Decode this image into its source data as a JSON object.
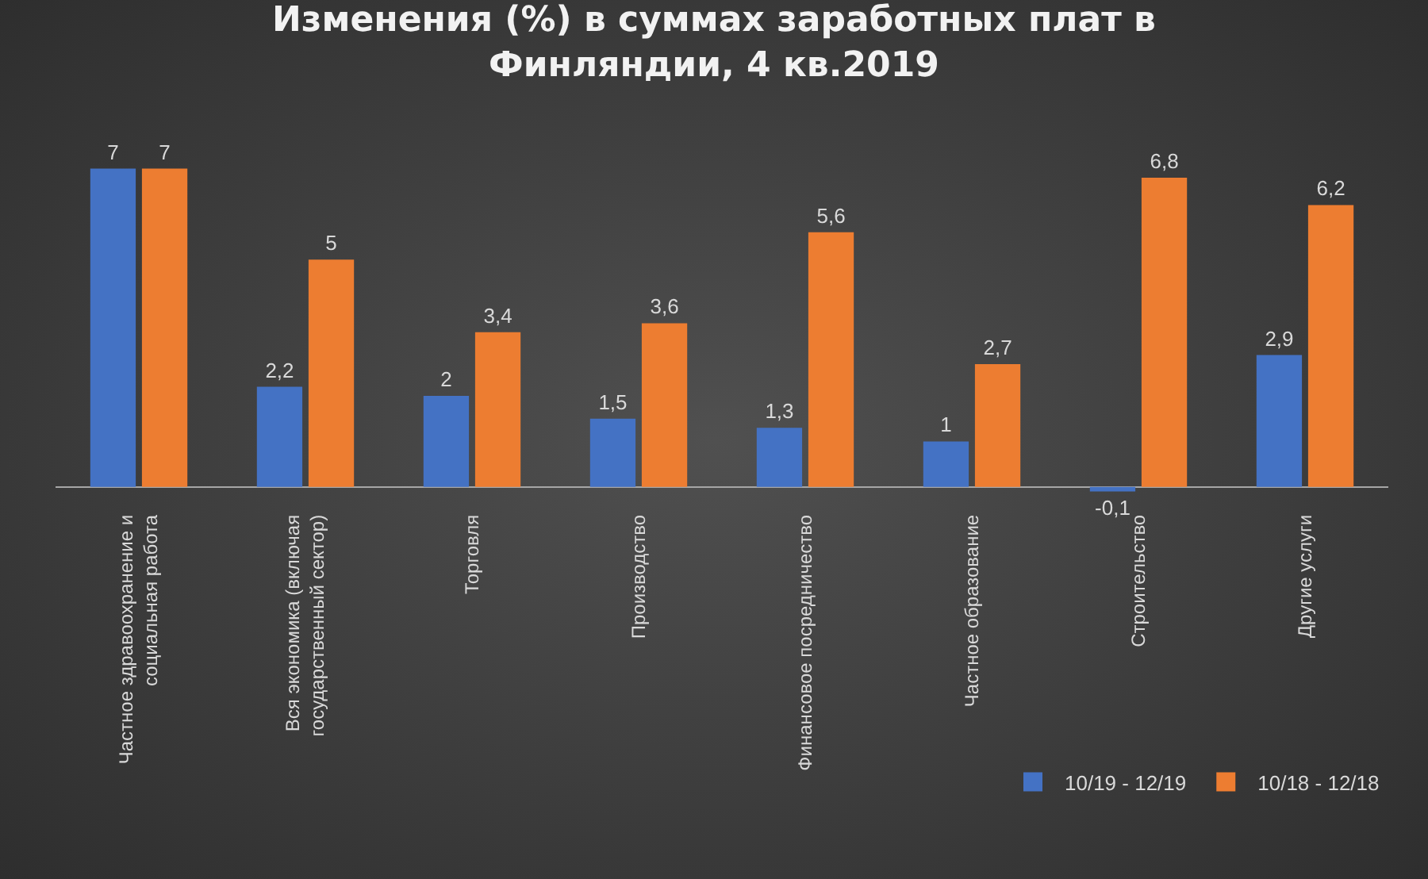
{
  "chart_data": {
    "type": "bar",
    "title": "Изменения (%) в суммах заработных плат в Финляндии, 4 кв.2019",
    "categories": [
      "Частное здравоохранение и социальная работа",
      "Вся экономика (включая государственный сектор)",
      "Торговля",
      "Производство",
      "Финансовое посредничество",
      "Частное образование",
      "Строительство",
      "Другие услуги"
    ],
    "series": [
      {
        "name": "10/19 - 12/19",
        "color": "#4472c4",
        "values": [
          7,
          2.2,
          2,
          1.5,
          1.3,
          1,
          -0.1,
          2.9
        ],
        "value_labels": [
          "7",
          "2,2",
          "2",
          "1,5",
          "1,3",
          "1",
          "-0,1",
          "2,9"
        ]
      },
      {
        "name": "10/18 - 12/18",
        "color": "#ed7d31",
        "values": [
          7,
          5,
          3.4,
          3.6,
          5.6,
          2.7,
          6.8,
          6.2
        ],
        "value_labels": [
          "7",
          "5",
          "3,4",
          "3,6",
          "5,6",
          "2,7",
          "6,8",
          "6,2"
        ]
      }
    ],
    "tick_labels": "x",
    "grid": false,
    "legend": "bottom right"
  }
}
